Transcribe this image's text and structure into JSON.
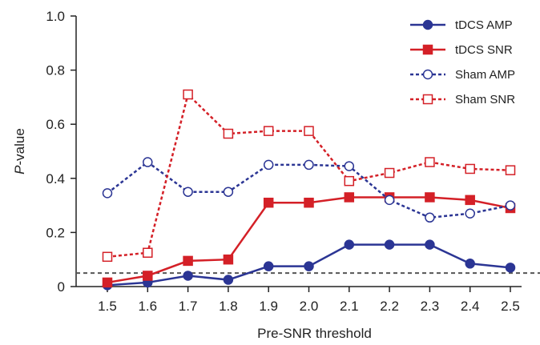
{
  "chart_data": {
    "type": "line",
    "x": [
      1.5,
      1.6,
      1.7,
      1.8,
      1.9,
      2.0,
      2.1,
      2.2,
      2.3,
      2.4,
      2.5
    ],
    "x_tick_labels": [
      "1.5",
      "1.6",
      "1.7",
      "1.8",
      "1.9",
      "2.0",
      "2.1",
      "2.2",
      "2.3",
      "2.4",
      "2.5"
    ],
    "xlabel": "Pre-SNR threshold",
    "ylabel_italic": "P",
    "ylabel_rest": "-value",
    "ylim": [
      0,
      1.0
    ],
    "y_ticks": [
      0,
      0.2,
      0.4,
      0.6,
      0.8,
      1.0
    ],
    "y_tick_labels": [
      "0",
      "0.2",
      "0.4",
      "0.6",
      "0.8",
      "1.0"
    ],
    "reference_line": {
      "y": 0.05,
      "style": "dashed",
      "color": "#555555"
    },
    "grid": false,
    "legend_position": "top-right",
    "series": [
      {
        "name": "tDCS AMP",
        "values": [
          0.005,
          0.015,
          0.04,
          0.025,
          0.075,
          0.075,
          0.155,
          0.155,
          0.155,
          0.085,
          0.07
        ],
        "color": "#2b3594",
        "line_style": "solid",
        "marker": "circle",
        "filled": true
      },
      {
        "name": "tDCS SNR",
        "values": [
          0.015,
          0.04,
          0.095,
          0.1,
          0.31,
          0.31,
          0.33,
          0.33,
          0.33,
          0.32,
          0.29
        ],
        "color": "#d42027",
        "line_style": "solid",
        "marker": "square",
        "filled": true
      },
      {
        "name": "Sham AMP",
        "values": [
          0.345,
          0.46,
          0.35,
          0.35,
          0.45,
          0.45,
          0.445,
          0.32,
          0.255,
          0.27,
          0.3
        ],
        "color": "#2b3594",
        "line_style": "dashed",
        "marker": "circle",
        "filled": false
      },
      {
        "name": "Sham SNR",
        "values": [
          0.11,
          0.125,
          0.71,
          0.565,
          0.575,
          0.575,
          0.39,
          0.42,
          0.46,
          0.435,
          0.43
        ],
        "color": "#d42027",
        "line_style": "dashed",
        "marker": "square",
        "filled": false
      }
    ]
  }
}
